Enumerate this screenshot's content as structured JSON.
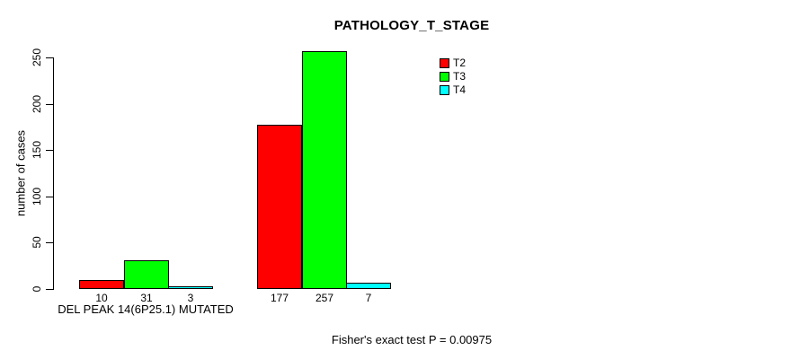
{
  "chart_data": {
    "type": "bar",
    "title": "PATHOLOGY_T_STAGE",
    "ylabel": "number of cases",
    "xlabel": "",
    "categories": [
      "DEL PEAK 14(6P25.1) MUTATED",
      ""
    ],
    "series": [
      {
        "name": "T2",
        "color": "#ff0000",
        "values": [
          10,
          177
        ]
      },
      {
        "name": "T3",
        "color": "#00ff00",
        "values": [
          31,
          257
        ]
      },
      {
        "name": "T4",
        "color": "#00ffff",
        "values": [
          3,
          7
        ]
      }
    ],
    "yticks": [
      0,
      50,
      100,
      150,
      200,
      250
    ],
    "ylim": [
      0,
      250
    ],
    "grid": false,
    "legend_position": "top-right",
    "legend_entries": [
      "T2",
      "T3",
      "T4"
    ],
    "bar_value_labels": [
      [
        10,
        31,
        3
      ],
      [
        177,
        257,
        7
      ]
    ],
    "annotation": "Fisher's exact test P = 0.00975"
  }
}
